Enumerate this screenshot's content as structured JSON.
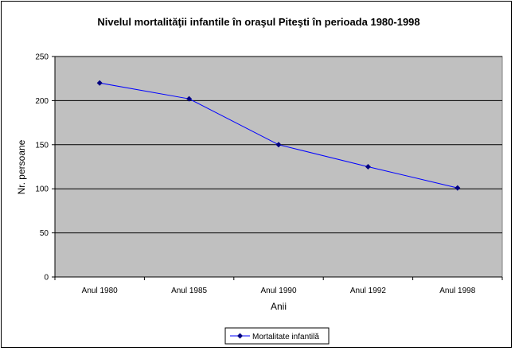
{
  "chart_data": {
    "type": "line",
    "title": "Nivelul mortalităţii infantile în oraşul Piteşti în perioada 1980-1998",
    "xlabel": "Anii",
    "ylabel": "Nr. persoane",
    "categories": [
      "Anul 1980",
      "Anul 1985",
      "Anul 1990",
      "Anul 1992",
      "Anul 1998"
    ],
    "series": [
      {
        "name": "Mortalitate infantilă",
        "values": [
          220,
          202,
          150,
          125,
          101
        ],
        "color": "#0000ff"
      }
    ],
    "ylim": [
      0,
      250
    ],
    "yticks": [
      0,
      50,
      100,
      150,
      200,
      250
    ],
    "grid": true,
    "plot_background": "#c0c0c0",
    "legend_position": "bottom"
  }
}
